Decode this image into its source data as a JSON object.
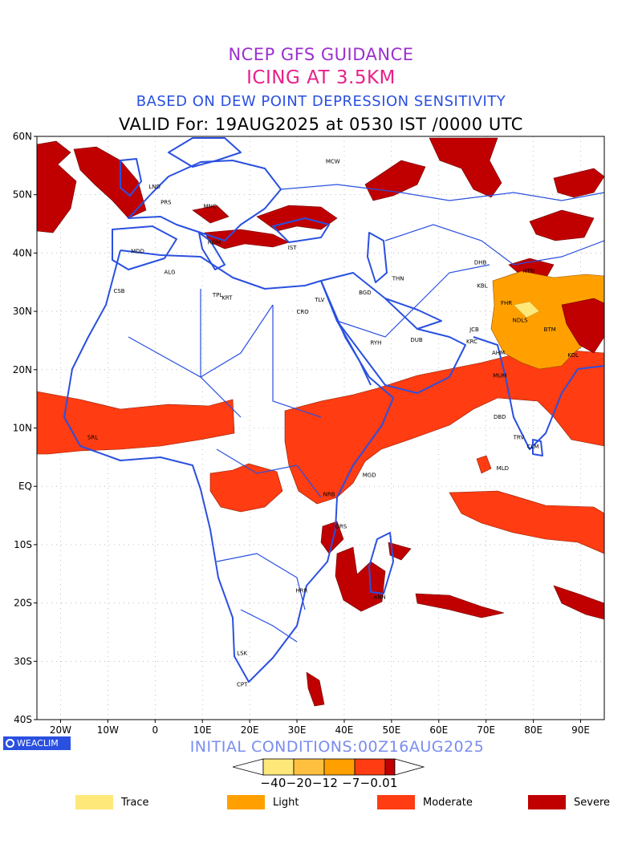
{
  "header": {
    "line1": "NCEP GFS GUIDANCE",
    "line2": "ICING AT 3.5KM",
    "line3": "BASED ON DEW POINT DEPRESSION SENSITIVITY",
    "line4": "VALID For: 19AUG2025 at 0530 IST /0000 UTC"
  },
  "axes": {
    "lat_labels": [
      "60N",
      "50N",
      "40N",
      "30N",
      "20N",
      "10N",
      "EQ",
      "10S",
      "20S",
      "30S",
      "40S"
    ],
    "lon_labels": [
      "20W",
      "10W",
      "0",
      "10E",
      "20E",
      "30E",
      "40E",
      "50E",
      "60E",
      "70E",
      "80E",
      "90E"
    ]
  },
  "cities": [
    {
      "name": "MCW",
      "lon": 37.6,
      "lat": 55.8
    },
    {
      "name": "LND",
      "lon": -0.1,
      "lat": 51.5
    },
    {
      "name": "PRS",
      "lon": 2.3,
      "lat": 48.8
    },
    {
      "name": "MNC",
      "lon": 11.6,
      "lat": 48.1
    },
    {
      "name": "MDD",
      "lon": -3.7,
      "lat": 40.4
    },
    {
      "name": "ROM",
      "lon": 12.5,
      "lat": 41.9
    },
    {
      "name": "IST",
      "lon": 29.0,
      "lat": 41.0
    },
    {
      "name": "ALG",
      "lon": 3.1,
      "lat": 36.8
    },
    {
      "name": "CSB",
      "lon": -7.6,
      "lat": 33.6
    },
    {
      "name": "TPL",
      "lon": 13.2,
      "lat": 32.9
    },
    {
      "name": "KRT",
      "lon": 15.2,
      "lat": 32.4
    },
    {
      "name": "CRO",
      "lon": 31.2,
      "lat": 30.0
    },
    {
      "name": "TLV",
      "lon": 34.8,
      "lat": 32.1
    },
    {
      "name": "BGD",
      "lon": 44.4,
      "lat": 33.3
    },
    {
      "name": "THN",
      "lon": 51.4,
      "lat": 35.7
    },
    {
      "name": "RYH",
      "lon": 46.7,
      "lat": 24.7
    },
    {
      "name": "DUB",
      "lon": 55.3,
      "lat": 25.2
    },
    {
      "name": "DHB",
      "lon": 68.8,
      "lat": 38.5
    },
    {
      "name": "KBL",
      "lon": 69.2,
      "lat": 34.5
    },
    {
      "name": "FHR",
      "lon": 74.3,
      "lat": 31.5
    },
    {
      "name": "JCB",
      "lon": 67.5,
      "lat": 27.0
    },
    {
      "name": "NDLS",
      "lon": 77.2,
      "lat": 28.6
    },
    {
      "name": "KRC",
      "lon": 67.0,
      "lat": 24.9
    },
    {
      "name": "AHM",
      "lon": 72.6,
      "lat": 23.0
    },
    {
      "name": "BTM",
      "lon": 83.5,
      "lat": 27.0
    },
    {
      "name": "KOL",
      "lon": 88.4,
      "lat": 22.6
    },
    {
      "name": "HTN",
      "lon": 79.0,
      "lat": 37.0
    },
    {
      "name": "MUM",
      "lon": 72.9,
      "lat": 19.1
    },
    {
      "name": "DBD",
      "lon": 72.9,
      "lat": 12.0
    },
    {
      "name": "TRV",
      "lon": 76.9,
      "lat": 8.5
    },
    {
      "name": "CLM",
      "lon": 79.9,
      "lat": 6.9
    },
    {
      "name": "MLD",
      "lon": 73.5,
      "lat": 3.2
    },
    {
      "name": "SRL",
      "lon": -13.2,
      "lat": 8.5
    },
    {
      "name": "MGD",
      "lon": 45.3,
      "lat": 2.0
    },
    {
      "name": "NRB",
      "lon": 36.8,
      "lat": -1.3
    },
    {
      "name": "DRS",
      "lon": 39.3,
      "lat": -6.8
    },
    {
      "name": "ANN",
      "lon": 47.5,
      "lat": -18.9
    },
    {
      "name": "HRR",
      "lon": 31.0,
      "lat": -17.8
    },
    {
      "name": "LSK",
      "lon": 18.4,
      "lat": -28.5
    },
    {
      "name": "CPT",
      "lon": 18.4,
      "lat": -33.9
    }
  ],
  "footer": {
    "brand": "WEACLIM",
    "initial_conditions": "INITIAL CONDITIONS:00Z16AUG2025",
    "colorbar_labels": "−40−20−12 −7−0.01"
  },
  "legend": [
    {
      "label": "Trace",
      "color": "#ffe87a"
    },
    {
      "label": "Light",
      "color": "#ffa000"
    },
    {
      "label": "Moderate",
      "color": "#ff3c12"
    },
    {
      "label": "Severe",
      "color": "#c00000"
    }
  ],
  "colors": {
    "coast": "#2a50e0",
    "colorbar": [
      "#ffe87a",
      "#ffc040",
      "#ffa000",
      "#ff3c12",
      "#c00000"
    ]
  }
}
